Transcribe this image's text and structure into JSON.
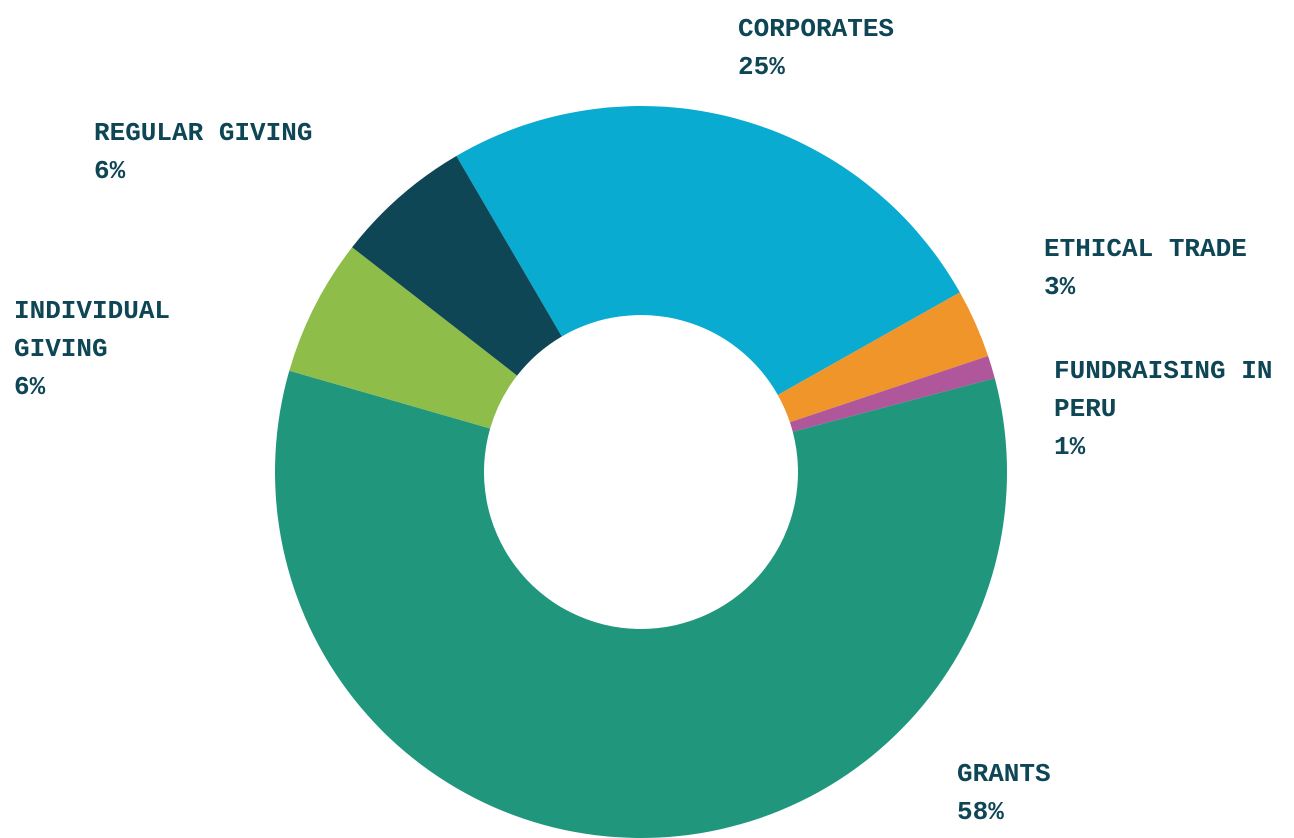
{
  "chart_data": {
    "type": "donut",
    "categories": [
      "CORPORATES",
      "ETHICAL TRADE",
      "FUNDRAISING IN PERU",
      "GRANTS",
      "INDIVIDUAL GIVING",
      "REGULAR GIVING"
    ],
    "values": [
      25,
      3,
      1,
      58,
      6,
      6
    ],
    "value_labels": [
      "25%",
      "3%",
      "1%",
      "58%",
      "6%",
      "6%"
    ],
    "colors": [
      "#0aabd0",
      "#f0952a",
      "#b0579c",
      "#20977d",
      "#8fbd4a",
      "#0f4656"
    ]
  }
}
